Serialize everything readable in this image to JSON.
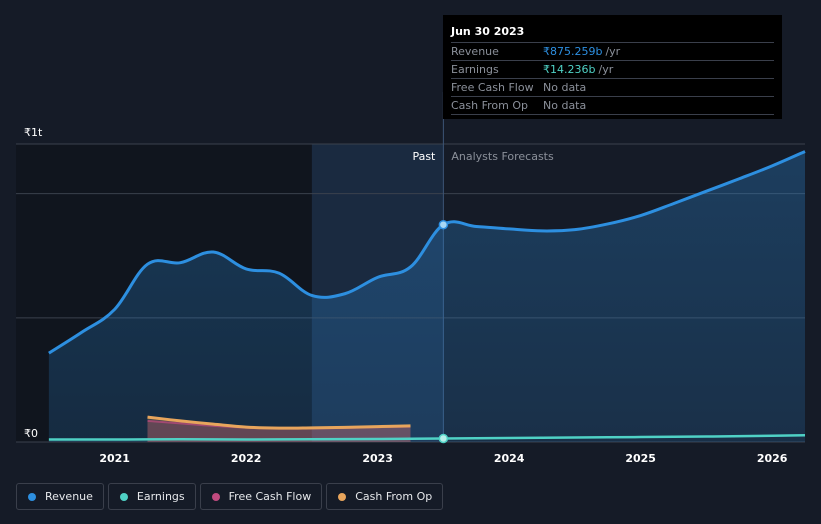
{
  "chart_data": {
    "type": "area",
    "title": "",
    "xlabel": "",
    "ylabel": "",
    "y_unit_labels": [
      "₹1t",
      "₹0"
    ],
    "ylim": [
      0,
      1200
    ],
    "x_tick_labels": [
      "2021",
      "2022",
      "2023",
      "2024",
      "2025",
      "2026"
    ],
    "x_tick_values": [
      2021.0,
      2022.0,
      2023.0,
      2024.0,
      2025.0,
      2026.0
    ],
    "xlim": [
      2020.25,
      2026.25
    ],
    "past_label": "Past",
    "forecast_label": "Analysts Forecasts",
    "divider_x": 2023.5,
    "shaded_start_x": 2022.5,
    "series": [
      {
        "name": "Revenue",
        "color": "#2d8fe0",
        "x": [
          2020.5,
          2020.75,
          2021.0,
          2021.25,
          2021.5,
          2021.75,
          2022.0,
          2022.25,
          2022.5,
          2022.75,
          2023.0,
          2023.25,
          2023.5,
          2023.75,
          2024.0,
          2024.25,
          2024.5,
          2024.75,
          2025.0,
          2025.25,
          2025.5,
          2025.75,
          2026.0,
          2026.25
        ],
        "values": [
          358,
          442,
          534,
          716,
          722,
          765,
          697,
          680,
          590,
          597,
          663,
          705,
          875,
          868,
          858,
          850,
          855,
          878,
          912,
          960,
          1010,
          1060,
          1112,
          1170
        ]
      },
      {
        "name": "Earnings",
        "color": "#4fd1c5",
        "x": [
          2020.5,
          2021.0,
          2021.5,
          2022.0,
          2022.5,
          2023.0,
          2023.5,
          2024.0,
          2024.5,
          2025.0,
          2025.5,
          2026.0,
          2026.25
        ],
        "values": [
          10,
          10,
          11,
          10,
          11,
          12,
          14.236,
          16,
          18,
          20,
          22,
          25,
          27
        ]
      },
      {
        "name": "Free Cash Flow",
        "color": "#c04a7f",
        "x": [
          2021.25,
          2021.5,
          2021.75,
          2022.0,
          2022.25,
          2022.5,
          2022.75,
          2023.0,
          2023.25
        ],
        "values": [
          85,
          75,
          65,
          58,
          55,
          55,
          57,
          60,
          62
        ]
      },
      {
        "name": "Cash From Op",
        "color": "#e8a55c",
        "x": [
          2021.25,
          2021.5,
          2021.75,
          2022.0,
          2022.25,
          2022.5,
          2022.75,
          2023.0,
          2023.25
        ],
        "values": [
          100,
          85,
          72,
          60,
          56,
          57,
          59,
          62,
          65
        ]
      }
    ]
  },
  "tooltip": {
    "date": "Jun 30 2023",
    "rows": [
      {
        "name": "Revenue",
        "value": "₹875.259b",
        "unit": "/yr",
        "color": "#2d8fe0"
      },
      {
        "name": "Earnings",
        "value": "₹14.236b",
        "unit": "/yr",
        "color": "#4fd1c5"
      },
      {
        "name": "Free Cash Flow",
        "value": "No data",
        "unit": "",
        "color": ""
      },
      {
        "name": "Cash From Op",
        "value": "No data",
        "unit": "",
        "color": ""
      }
    ]
  },
  "legend": [
    {
      "label": "Revenue",
      "color": "#2d8fe0"
    },
    {
      "label": "Earnings",
      "color": "#4fd1c5"
    },
    {
      "label": "Free Cash Flow",
      "color": "#c04a7f"
    },
    {
      "label": "Cash From Op",
      "color": "#e8a55c"
    }
  ]
}
